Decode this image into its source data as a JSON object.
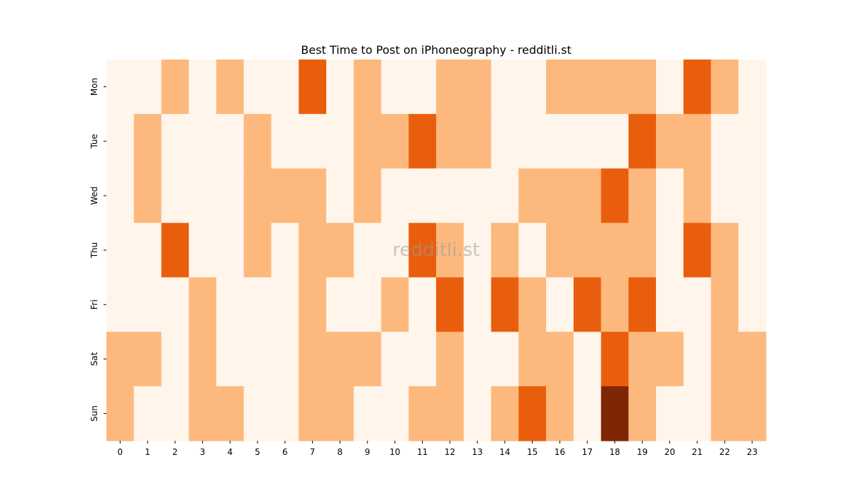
{
  "chart_data": {
    "type": "heatmap",
    "title": "Best Time to Post on iPhoneography - redditli.st",
    "xlabel": "",
    "ylabel": "",
    "x_categories": [
      "0",
      "1",
      "2",
      "3",
      "4",
      "5",
      "6",
      "7",
      "8",
      "9",
      "10",
      "11",
      "12",
      "13",
      "14",
      "15",
      "16",
      "17",
      "18",
      "19",
      "20",
      "21",
      "22",
      "23"
    ],
    "y_categories": [
      "Mon",
      "Tue",
      "Wed",
      "Thu",
      "Fri",
      "Sat",
      "Sun"
    ],
    "values": [
      [
        0,
        0,
        1,
        0,
        1,
        0,
        0,
        2,
        0,
        1,
        0,
        0,
        1,
        1,
        0,
        0,
        1,
        1,
        1,
        1,
        0,
        2,
        1,
        0
      ],
      [
        0,
        1,
        0,
        0,
        0,
        1,
        0,
        0,
        0,
        1,
        1,
        2,
        1,
        1,
        0,
        0,
        0,
        0,
        0,
        2,
        1,
        1,
        0,
        0
      ],
      [
        0,
        1,
        0,
        0,
        0,
        1,
        1,
        1,
        0,
        1,
        0,
        0,
        0,
        0,
        0,
        1,
        1,
        1,
        2,
        1,
        0,
        1,
        0,
        0
      ],
      [
        0,
        0,
        2,
        0,
        0,
        1,
        0,
        1,
        1,
        0,
        0,
        2,
        1,
        0,
        1,
        0,
        1,
        1,
        1,
        1,
        0,
        2,
        1,
        0
      ],
      [
        0,
        0,
        0,
        1,
        0,
        0,
        0,
        1,
        0,
        0,
        1,
        0,
        2,
        0,
        2,
        1,
        0,
        2,
        1,
        2,
        0,
        0,
        1,
        0
      ],
      [
        1,
        1,
        0,
        1,
        0,
        0,
        0,
        1,
        1,
        1,
        0,
        0,
        1,
        0,
        0,
        1,
        1,
        0,
        2,
        1,
        1,
        0,
        1,
        1
      ],
      [
        1,
        0,
        0,
        1,
        1,
        0,
        0,
        1,
        1,
        0,
        0,
        1,
        1,
        0,
        1,
        2,
        1,
        0,
        3,
        1,
        0,
        0,
        1,
        1
      ]
    ],
    "colorscale": [
      "#fff5eb",
      "#fdb97d",
      "#e95e0d",
      "#7f2704"
    ],
    "colorbar": false,
    "grid": false,
    "watermark": "redditli.st"
  }
}
